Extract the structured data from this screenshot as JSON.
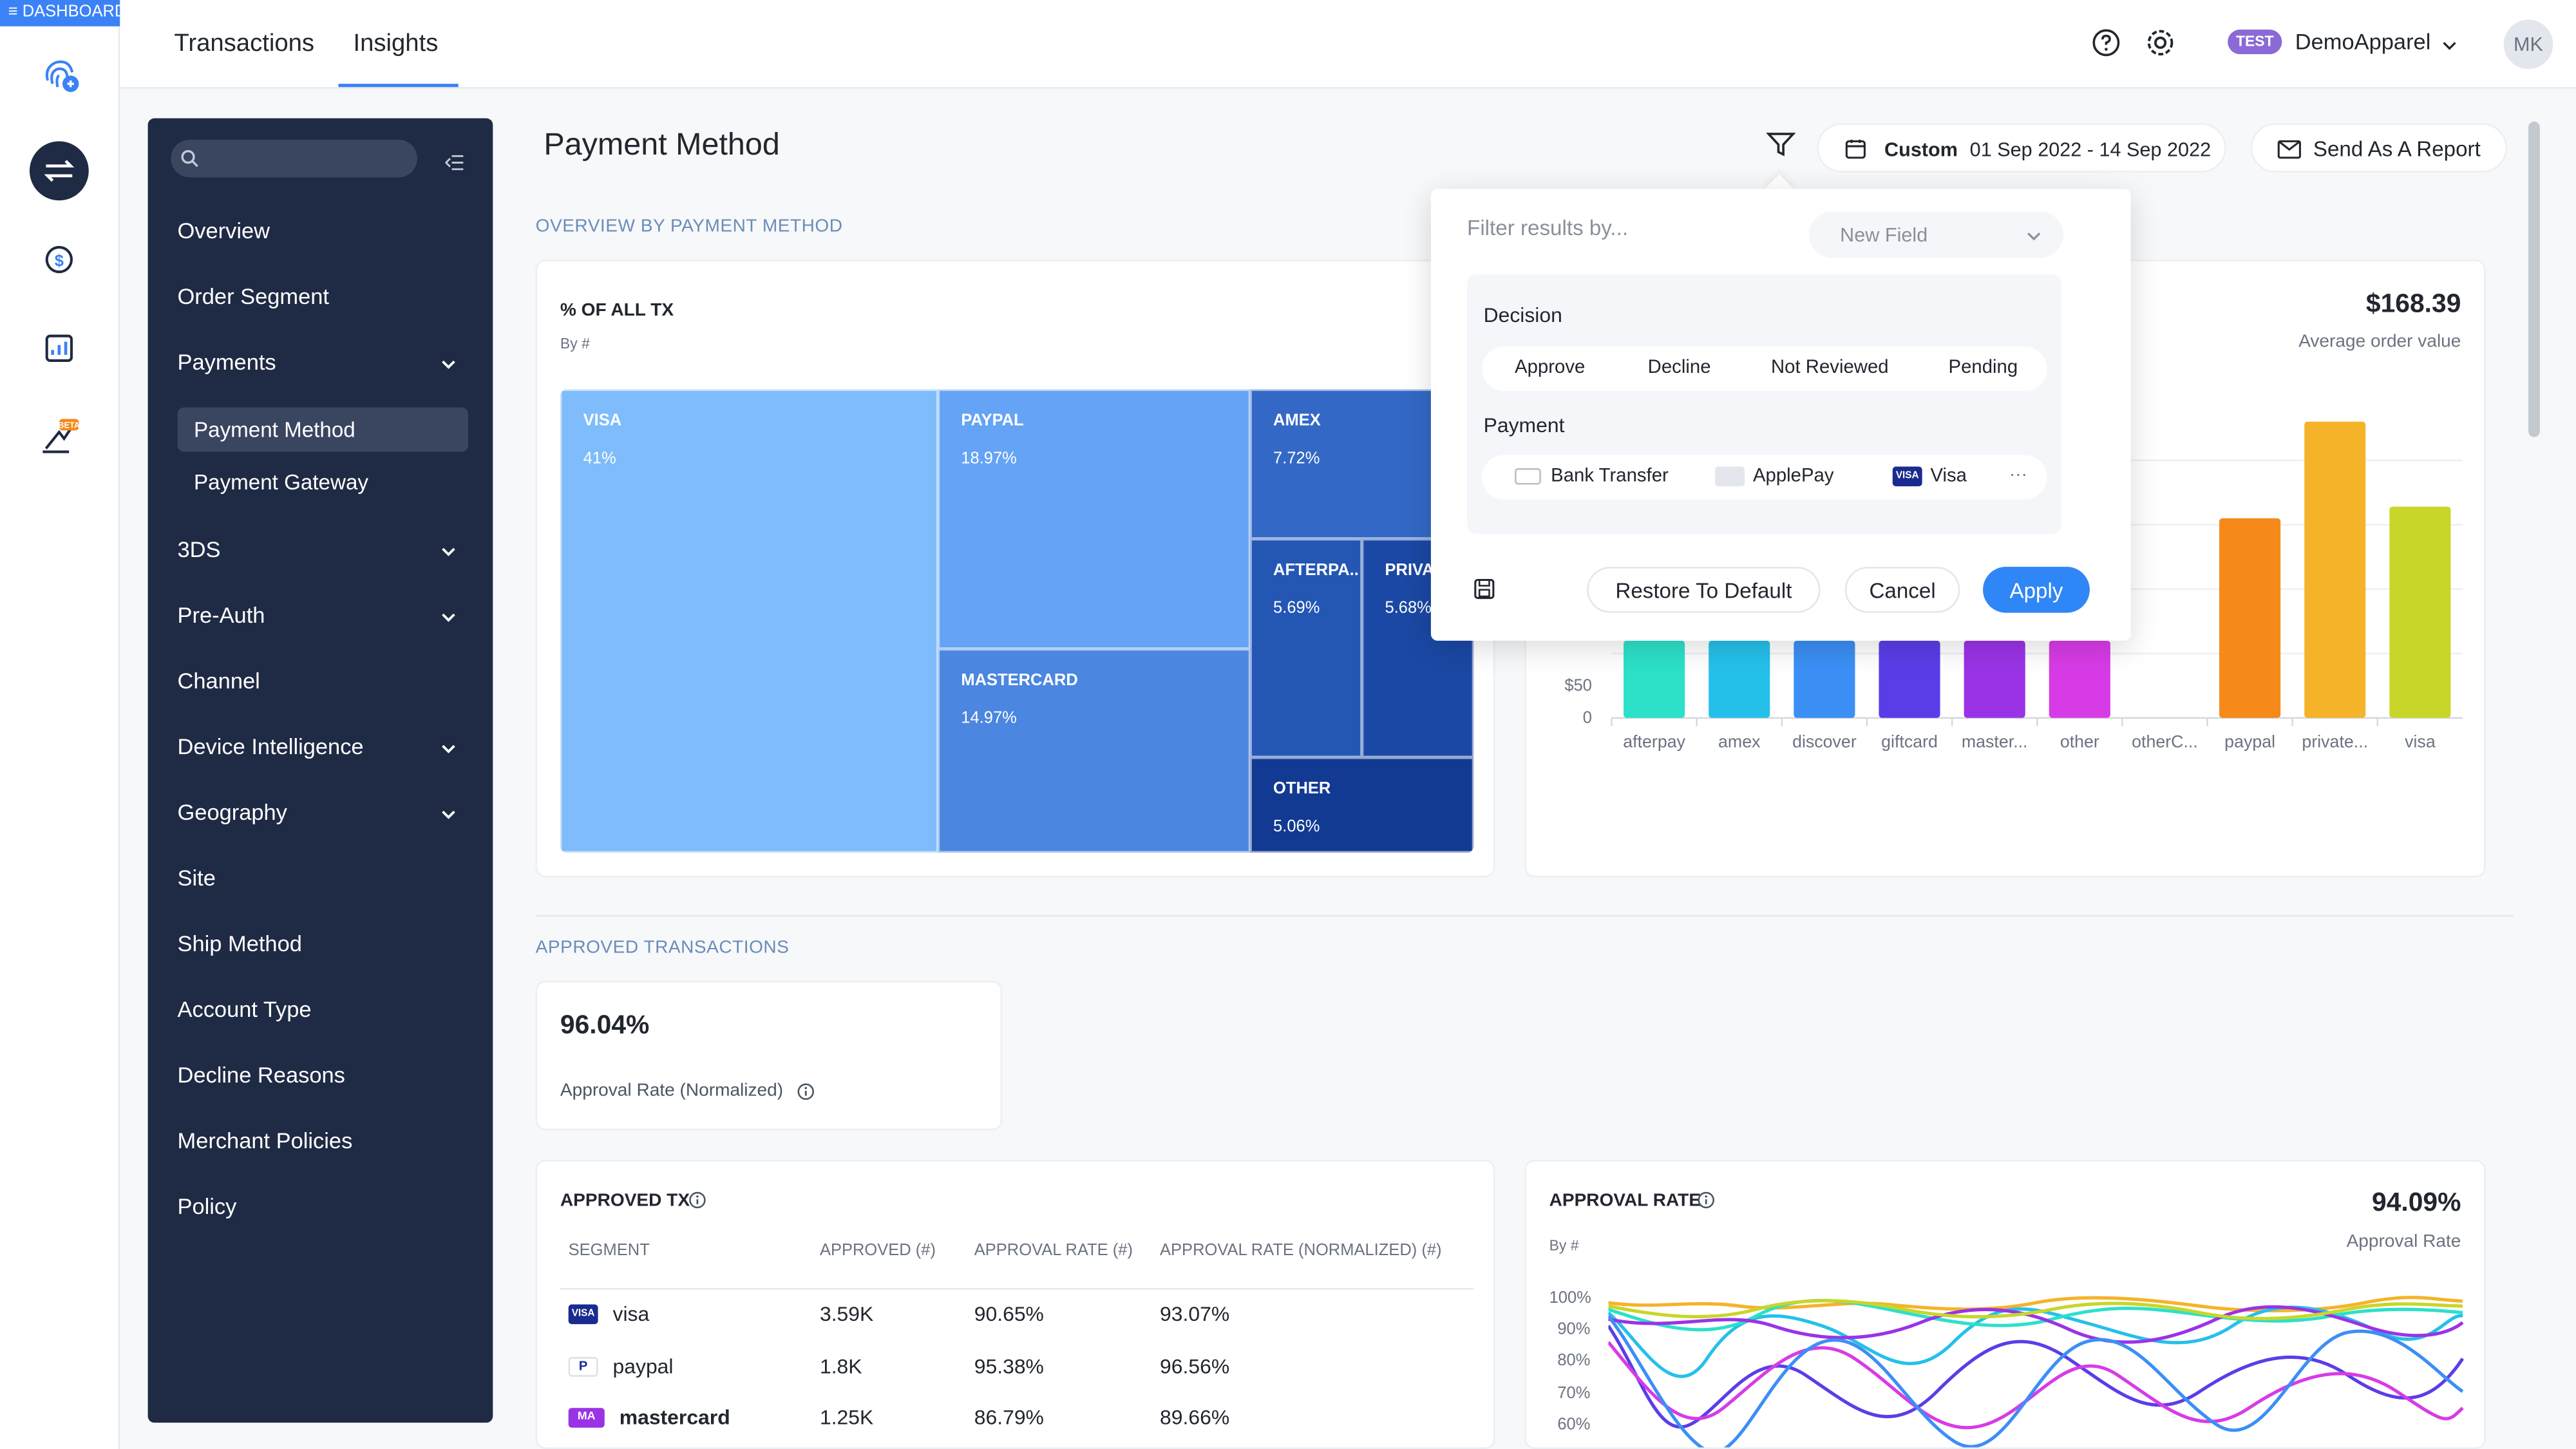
{
  "app": {
    "dashboard_tag": "≡ DASHBOARD"
  },
  "header": {
    "tabs": [
      {
        "label": "Transactions"
      },
      {
        "label": "Insights"
      }
    ],
    "test_badge": "TEST",
    "account": "DemoApparel",
    "avatar": "MK"
  },
  "sidebar": {
    "items": [
      {
        "label": "Overview"
      },
      {
        "label": "Order Segment"
      },
      {
        "label": "Payments"
      },
      {
        "label": "Payment Method"
      },
      {
        "label": "Payment Gateway"
      },
      {
        "label": "3DS"
      },
      {
        "label": "Pre-Auth"
      },
      {
        "label": "Channel"
      },
      {
        "label": "Device Intelligence"
      },
      {
        "label": "Geography"
      },
      {
        "label": "Site"
      },
      {
        "label": "Ship Method"
      },
      {
        "label": "Account Type"
      },
      {
        "label": "Decline Reasons"
      },
      {
        "label": "Merchant Policies"
      },
      {
        "label": "Policy"
      }
    ]
  },
  "main": {
    "title": "Payment Method",
    "date_range_label": "Custom",
    "date_range": "01 Sep 2022 - 14 Sep 2022",
    "send_report": "Send As A Report",
    "overview_label": "OVERVIEW BY PAYMENT METHOD",
    "approved_label": "APPROVED TRANSACTIONS"
  },
  "treemap": {
    "title": "% OF ALL TX",
    "subtitle": "By #",
    "cells": [
      {
        "name": "VISA",
        "pct": "41%"
      },
      {
        "name": "PAYPAL",
        "pct": "18.97%"
      },
      {
        "name": "MASTERCARD",
        "pct": "14.97%"
      },
      {
        "name": "AMEX",
        "pct": "7.72%"
      },
      {
        "name": "AFTERPA..",
        "pct": "5.69%"
      },
      {
        "name": "PRIVA",
        "pct": "5.68%"
      },
      {
        "name": "OTHER",
        "pct": "5.06%"
      }
    ]
  },
  "aov": {
    "value": "$168.39",
    "label": "Average order value"
  },
  "chart_data": {
    "type": "bar",
    "categories": [
      "afterpay",
      "amex",
      "discover",
      "giftcard",
      "master...",
      "other",
      "otherC...",
      "paypal",
      "private...",
      "visa"
    ],
    "values": [
      120,
      120,
      120,
      120,
      120,
      120,
      0,
      310,
      460,
      328
    ],
    "visible_yticks": [
      "$50",
      "0"
    ],
    "colors": [
      "#2de0c8",
      "#25c0ea",
      "#3b8ff5",
      "#5b3de8",
      "#9a33e6",
      "#d73be6",
      "#cccccc",
      "#f58a1a",
      "#f5b32a",
      "#c8d62a"
    ],
    "ylim": [
      0,
      500
    ]
  },
  "approved": {
    "rate": "96.04%",
    "rate_label": "Approval Rate (Normalized)"
  },
  "approved_tx": {
    "title": "APPROVED TX",
    "headers": [
      "SEGMENT",
      "APPROVED (#)",
      "APPROVAL RATE (#)",
      "APPROVAL RATE (NORMALIZED) (#)"
    ],
    "rows": [
      {
        "segment": "visa",
        "approved": "3.59K",
        "rate": "90.65%",
        "normalized": "93.07%"
      },
      {
        "segment": "paypal",
        "approved": "1.8K",
        "rate": "95.38%",
        "normalized": "96.56%"
      },
      {
        "segment": "mastercard",
        "approved": "1.25K",
        "rate": "86.79%",
        "normalized": "89.66%"
      }
    ]
  },
  "approval_rate": {
    "title": "APPROVAL RATE",
    "subtitle": "By #",
    "value": "94.09%",
    "value_label": "Approval Rate",
    "yticks": [
      "100%",
      "90%",
      "80%",
      "70%",
      "60%"
    ]
  },
  "filter": {
    "placeholder": "Filter results by...",
    "new_field": "New Field",
    "decision_label": "Decision",
    "decisions": [
      "Approve",
      "Decline",
      "Not Reviewed",
      "Pending"
    ],
    "payment_label": "Payment",
    "payments": [
      "Bank Transfer",
      "ApplePay",
      "Visa"
    ],
    "more": "···",
    "restore": "Restore To Default",
    "cancel": "Cancel",
    "apply": "Apply"
  },
  "colors": {
    "accent": "#3b82f6",
    "sidebar_bg": "#1f2a44",
    "treemap": [
      "#7ebcfb",
      "#64a3f5",
      "#4b86e0",
      "#3368c6",
      "#2457b4",
      "#1b48a4",
      "#123a92"
    ]
  }
}
